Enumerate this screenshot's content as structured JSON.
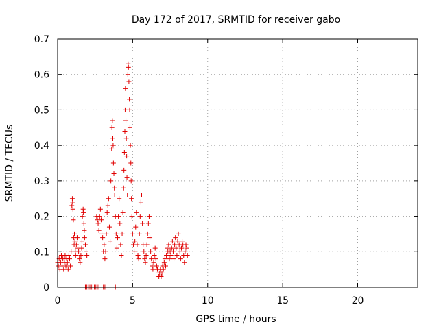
{
  "chart_data": {
    "type": "scatter",
    "title": "Day 172 of 2017, SRMTID for receiver gabo",
    "xlabel": "GPS time / hours",
    "ylabel": "SRMTID / TECUs",
    "xlim": [
      0,
      24
    ],
    "ylim": [
      0,
      0.7
    ],
    "xticks": [
      0,
      5,
      10,
      15,
      20
    ],
    "yticks": [
      0,
      0.1,
      0.2,
      0.3,
      0.4,
      0.5,
      0.6,
      0.7
    ],
    "xtick_labels": [
      "0",
      "5",
      "10",
      "15",
      "20"
    ],
    "ytick_labels": [
      "0",
      "0.1",
      "0.2",
      "0.3",
      "0.4",
      "0.5",
      "0.6",
      "0.7"
    ],
    "grid": true,
    "marker": "+",
    "color": "#e00000",
    "series": [
      {
        "name": "SRMTID",
        "points": [
          [
            0.0,
            0.07
          ],
          [
            0.05,
            0.06
          ],
          [
            0.1,
            0.08
          ],
          [
            0.15,
            0.05
          ],
          [
            0.2,
            0.07
          ],
          [
            0.25,
            0.09
          ],
          [
            0.3,
            0.06
          ],
          [
            0.35,
            0.08
          ],
          [
            0.4,
            0.05
          ],
          [
            0.45,
            0.07
          ],
          [
            0.5,
            0.09
          ],
          [
            0.55,
            0.06
          ],
          [
            0.6,
            0.08
          ],
          [
            0.65,
            0.07
          ],
          [
            0.7,
            0.05
          ],
          [
            0.75,
            0.09
          ],
          [
            0.8,
            0.08
          ],
          [
            0.85,
            0.06
          ],
          [
            0.9,
            0.1
          ],
          [
            0.95,
            0.23
          ],
          [
            0.98,
            0.25
          ],
          [
            1.0,
            0.24
          ],
          [
            1.02,
            0.22
          ],
          [
            1.05,
            0.19
          ],
          [
            1.08,
            0.14
          ],
          [
            1.1,
            0.12
          ],
          [
            1.12,
            0.15
          ],
          [
            1.15,
            0.13
          ],
          [
            1.18,
            0.1
          ],
          [
            1.2,
            0.09
          ],
          [
            1.25,
            0.12
          ],
          [
            1.3,
            0.14
          ],
          [
            1.35,
            0.11
          ],
          [
            1.4,
            0.1
          ],
          [
            1.45,
            0.08
          ],
          [
            1.5,
            0.07
          ],
          [
            1.55,
            0.09
          ],
          [
            1.6,
            0.11
          ],
          [
            1.62,
            0.13
          ],
          [
            1.65,
            0.2
          ],
          [
            1.7,
            0.22
          ],
          [
            1.72,
            0.21
          ],
          [
            1.75,
            0.18
          ],
          [
            1.78,
            0.16
          ],
          [
            1.8,
            0.14
          ],
          [
            1.85,
            0.12
          ],
          [
            1.9,
            0.1
          ],
          [
            1.95,
            0.09
          ],
          [
            1.85,
            0.0
          ],
          [
            1.95,
            0.0
          ],
          [
            2.05,
            0.0
          ],
          [
            2.15,
            0.0
          ],
          [
            2.25,
            0.0
          ],
          [
            2.35,
            0.0
          ],
          [
            2.45,
            0.0
          ],
          [
            2.55,
            0.0
          ],
          [
            2.65,
            0.0
          ],
          [
            2.75,
            0.0
          ],
          [
            3.05,
            0.0
          ],
          [
            3.15,
            0.0
          ],
          [
            3.85,
            0.0
          ],
          [
            2.6,
            0.2
          ],
          [
            2.65,
            0.19
          ],
          [
            2.7,
            0.18
          ],
          [
            2.75,
            0.16
          ],
          [
            2.8,
            0.2
          ],
          [
            2.85,
            0.22
          ],
          [
            2.9,
            0.19
          ],
          [
            2.95,
            0.15
          ],
          [
            3.0,
            0.14
          ],
          [
            3.05,
            0.1
          ],
          [
            3.1,
            0.12
          ],
          [
            3.15,
            0.08
          ],
          [
            3.2,
            0.1
          ],
          [
            3.25,
            0.15
          ],
          [
            3.3,
            0.21
          ],
          [
            3.35,
            0.23
          ],
          [
            3.4,
            0.25
          ],
          [
            3.45,
            0.17
          ],
          [
            3.5,
            0.13
          ],
          [
            3.55,
            0.3
          ],
          [
            3.6,
            0.39
          ],
          [
            3.62,
            0.45
          ],
          [
            3.65,
            0.47
          ],
          [
            3.68,
            0.42
          ],
          [
            3.7,
            0.4
          ],
          [
            3.72,
            0.35
          ],
          [
            3.75,
            0.32
          ],
          [
            3.78,
            0.28
          ],
          [
            3.8,
            0.26
          ],
          [
            3.85,
            0.2
          ],
          [
            3.9,
            0.15
          ],
          [
            3.95,
            0.11
          ],
          [
            4.0,
            0.14
          ],
          [
            4.05,
            0.2
          ],
          [
            4.1,
            0.25
          ],
          [
            4.15,
            0.18
          ],
          [
            4.2,
            0.12
          ],
          [
            4.25,
            0.09
          ],
          [
            4.3,
            0.15
          ],
          [
            4.35,
            0.21
          ],
          [
            4.4,
            0.28
          ],
          [
            4.42,
            0.33
          ],
          [
            4.45,
            0.38
          ],
          [
            4.48,
            0.44
          ],
          [
            4.5,
            0.5
          ],
          [
            4.52,
            0.56
          ],
          [
            4.55,
            0.47
          ],
          [
            4.58,
            0.42
          ],
          [
            4.6,
            0.37
          ],
          [
            4.62,
            0.31
          ],
          [
            4.65,
            0.26
          ],
          [
            4.68,
            0.6
          ],
          [
            4.7,
            0.63
          ],
          [
            4.72,
            0.62
          ],
          [
            4.75,
            0.58
          ],
          [
            4.78,
            0.53
          ],
          [
            4.8,
            0.5
          ],
          [
            4.82,
            0.45
          ],
          [
            4.85,
            0.4
          ],
          [
            4.88,
            0.35
          ],
          [
            4.9,
            0.3
          ],
          [
            4.92,
            0.25
          ],
          [
            4.95,
            0.2
          ],
          [
            5.0,
            0.15
          ],
          [
            5.05,
            0.12
          ],
          [
            5.1,
            0.1
          ],
          [
            5.15,
            0.13
          ],
          [
            5.2,
            0.17
          ],
          [
            5.25,
            0.21
          ],
          [
            5.3,
            0.12
          ],
          [
            5.35,
            0.09
          ],
          [
            5.4,
            0.08
          ],
          [
            5.45,
            0.15
          ],
          [
            5.5,
            0.2
          ],
          [
            5.55,
            0.24
          ],
          [
            5.6,
            0.26
          ],
          [
            5.65,
            0.18
          ],
          [
            5.7,
            0.12
          ],
          [
            5.75,
            0.1
          ],
          [
            5.8,
            0.08
          ],
          [
            5.85,
            0.07
          ],
          [
            5.9,
            0.09
          ],
          [
            5.95,
            0.12
          ],
          [
            6.0,
            0.15
          ],
          [
            6.05,
            0.18
          ],
          [
            6.1,
            0.2
          ],
          [
            6.15,
            0.14
          ],
          [
            6.2,
            0.1
          ],
          [
            6.25,
            0.08
          ],
          [
            6.3,
            0.06
          ],
          [
            6.35,
            0.05
          ],
          [
            6.4,
            0.07
          ],
          [
            6.45,
            0.09
          ],
          [
            6.5,
            0.11
          ],
          [
            6.55,
            0.08
          ],
          [
            6.6,
            0.06
          ],
          [
            6.65,
            0.05
          ],
          [
            6.7,
            0.04
          ],
          [
            6.75,
            0.03
          ],
          [
            6.8,
            0.04
          ],
          [
            6.85,
            0.05
          ],
          [
            6.9,
            0.03
          ],
          [
            6.95,
            0.04
          ],
          [
            7.0,
            0.06
          ],
          [
            7.05,
            0.05
          ],
          [
            7.1,
            0.07
          ],
          [
            7.15,
            0.08
          ],
          [
            7.2,
            0.06
          ],
          [
            7.25,
            0.09
          ],
          [
            7.3,
            0.11
          ],
          [
            7.35,
            0.1
          ],
          [
            7.4,
            0.12
          ],
          [
            7.45,
            0.08
          ],
          [
            7.5,
            0.1
          ],
          [
            7.55,
            0.09
          ],
          [
            7.6,
            0.11
          ],
          [
            7.65,
            0.13
          ],
          [
            7.7,
            0.1
          ],
          [
            7.75,
            0.08
          ],
          [
            7.8,
            0.12
          ],
          [
            7.85,
            0.14
          ],
          [
            7.9,
            0.11
          ],
          [
            7.95,
            0.09
          ],
          [
            8.0,
            0.13
          ],
          [
            8.05,
            0.15
          ],
          [
            8.1,
            0.12
          ],
          [
            8.15,
            0.1
          ],
          [
            8.2,
            0.08
          ],
          [
            8.25,
            0.11
          ],
          [
            8.3,
            0.13
          ],
          [
            8.35,
            0.12
          ],
          [
            8.4,
            0.09
          ],
          [
            8.45,
            0.07
          ],
          [
            8.5,
            0.1
          ],
          [
            8.55,
            0.12
          ],
          [
            8.6,
            0.11
          ],
          [
            8.65,
            0.09
          ]
        ]
      }
    ]
  }
}
